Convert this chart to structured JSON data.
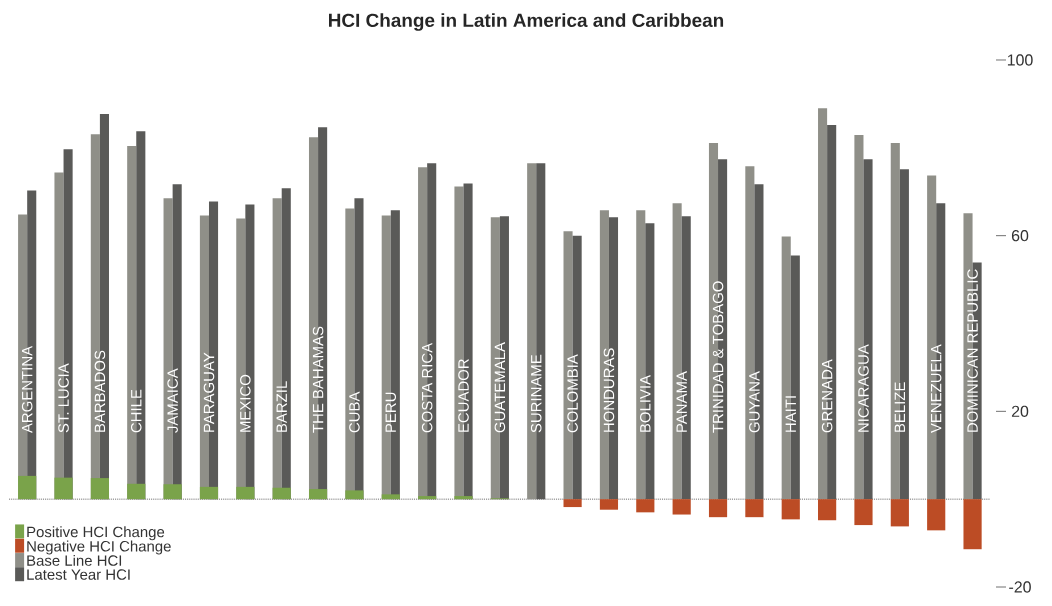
{
  "chart_data": {
    "type": "bar",
    "title": "HCI Change in Latin America and Caribbean",
    "categories": [
      "ARGENTINA",
      "ST. LUCIA",
      "BARBADOS",
      "CHILE",
      "JAMAICA",
      "PARAGUAY",
      "MEXICO",
      "BARZIL",
      "THE BAHAMAS",
      "CUBA",
      "PERU",
      "COSTA RICA",
      "ECUADOR",
      "GUATEMALA",
      "SURINAME",
      "COLOMBIA",
      "HONDURAS",
      "BOLIVIA",
      "PANAMA",
      "TRINIDAD & TOBAGO",
      "GUYANA",
      "HAITI",
      "GRENADA",
      "NICARAGUA",
      "BELIZE",
      "VENEZUELA",
      "DOMINICAN REPUBLIC"
    ],
    "series": [
      {
        "name": "Positive HCI Change",
        "color": "#7aa34a",
        "values": [
          5.3,
          4.9,
          4.8,
          3.5,
          3.4,
          2.8,
          2.8,
          2.6,
          2.3,
          2.0,
          1.1,
          0.7,
          0.7,
          0.2,
          null,
          null,
          null,
          null,
          null,
          null,
          null,
          null,
          null,
          null,
          null,
          null,
          null
        ]
      },
      {
        "name": "Negative HCI Change",
        "color": "#bc4c25",
        "values": [
          null,
          null,
          null,
          null,
          null,
          null,
          null,
          null,
          null,
          null,
          null,
          null,
          null,
          null,
          null,
          -1.8,
          -2.4,
          -3.0,
          -3.5,
          -4.1,
          -4.1,
          -4.6,
          -4.8,
          -5.9,
          -6.2,
          -7.1,
          -11.4
        ]
      },
      {
        "name": "Base Line HCI",
        "color": "#8f8f88",
        "values": [
          64.8,
          74.4,
          83.1,
          80.4,
          68.5,
          64.6,
          63.9,
          68.5,
          82.4,
          66.2,
          64.6,
          75.6,
          71.2,
          64.2,
          76.5,
          61.0,
          65.8,
          65.8,
          67.4,
          81.1,
          75.8,
          59.8,
          89.0,
          82.9,
          81.1,
          73.7,
          65.1
        ]
      },
      {
        "name": "Latest Year HCI",
        "color": "#5a5a58",
        "values": [
          70.3,
          79.7,
          87.7,
          83.8,
          71.7,
          67.8,
          67.1,
          70.8,
          84.7,
          68.5,
          65.8,
          76.5,
          71.9,
          64.4,
          76.5,
          60.0,
          64.2,
          62.8,
          64.4,
          77.4,
          71.7,
          55.5,
          85.2,
          77.4,
          75.1,
          67.4,
          53.9
        ]
      }
    ],
    "ref_lines": [
      {
        "axis": "y",
        "value": 0,
        "line_style": "dotted",
        "color": "#4c4c4c"
      }
    ],
    "ylim": [
      -20,
      100
    ],
    "yticks": [
      -20,
      20,
      60,
      100
    ],
    "legend": "bottom left",
    "grid": false
  }
}
